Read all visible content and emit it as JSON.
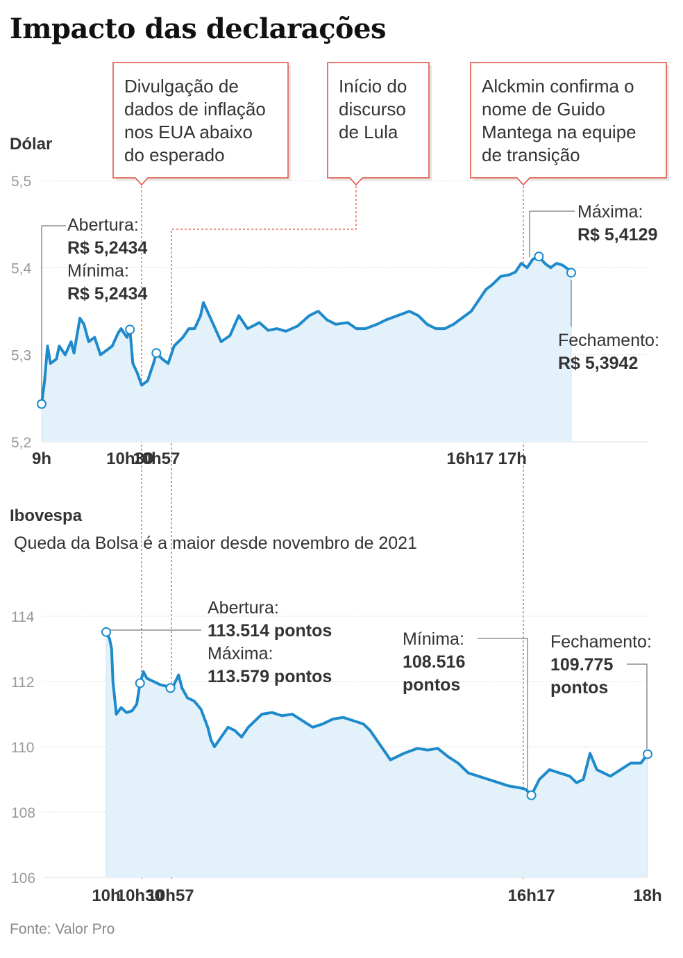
{
  "title": "Impacto das declarações",
  "source": "Fonte: Valor Pro",
  "colors": {
    "line": "#1e8acb",
    "area": "#e3f1fa",
    "event": "#e04a3a",
    "grid": "#dddddd",
    "marker_fill": "#ffffff"
  },
  "events": [
    {
      "lines": [
        "Divulgação de",
        "dados de inflação",
        "nos EUA abaixo",
        "do esperado"
      ],
      "time": "10h30"
    },
    {
      "lines": [
        "Início do",
        "discurso",
        "de Lula"
      ],
      "time": "10h57"
    },
    {
      "lines": [
        "Alckmin confirma o",
        "nome de Guido",
        "Mantega na equipe",
        "de transição"
      ],
      "time": "16h17"
    }
  ],
  "chart_data": [
    {
      "type": "line",
      "title": "Dólar",
      "subtitle": "",
      "ylim": [
        5.2,
        5.5
      ],
      "yticks": [
        "5,2",
        "5,3",
        "5,4",
        "5,5"
      ],
      "xlim_hours": [
        9,
        18
      ],
      "xticks": [
        {
          "label": "9h",
          "x": 9.0
        },
        {
          "label": "10h30",
          "x": 10.5
        },
        {
          "label": "10h57",
          "x": 10.95
        },
        {
          "label": "16h17",
          "x": 16.283
        },
        {
          "label": "17h",
          "x": 17.0
        }
      ],
      "grid": true,
      "series": [
        {
          "points": [
            [
              9.0,
              5.2434
            ],
            [
              9.05,
              5.27
            ],
            [
              9.1,
              5.31
            ],
            [
              9.15,
              5.29
            ],
            [
              9.25,
              5.295
            ],
            [
              9.3,
              5.31
            ],
            [
              9.4,
              5.3
            ],
            [
              9.5,
              5.315
            ],
            [
              9.55,
              5.302
            ],
            [
              9.65,
              5.342
            ],
            [
              9.72,
              5.335
            ],
            [
              9.8,
              5.315
            ],
            [
              9.9,
              5.32
            ],
            [
              10.0,
              5.3
            ],
            [
              10.1,
              5.305
            ],
            [
              10.2,
              5.31
            ],
            [
              10.3,
              5.325
            ],
            [
              10.35,
              5.33
            ],
            [
              10.45,
              5.32
            ],
            [
              10.5,
              5.329
            ],
            [
              10.55,
              5.29
            ],
            [
              10.62,
              5.28
            ],
            [
              10.7,
              5.265
            ],
            [
              10.8,
              5.27
            ],
            [
              10.9,
              5.29
            ],
            [
              10.95,
              5.302
            ],
            [
              11.05,
              5.295
            ],
            [
              11.15,
              5.29
            ],
            [
              11.25,
              5.31
            ],
            [
              11.4,
              5.32
            ],
            [
              11.5,
              5.33
            ],
            [
              11.6,
              5.33
            ],
            [
              11.7,
              5.345
            ],
            [
              11.75,
              5.36
            ],
            [
              11.85,
              5.345
            ],
            [
              11.95,
              5.33
            ],
            [
              12.05,
              5.315
            ],
            [
              12.2,
              5.322
            ],
            [
              12.35,
              5.345
            ],
            [
              12.5,
              5.33
            ],
            [
              12.7,
              5.337
            ],
            [
              12.85,
              5.328
            ],
            [
              13.0,
              5.33
            ],
            [
              13.15,
              5.327
            ],
            [
              13.35,
              5.333
            ],
            [
              13.55,
              5.345
            ],
            [
              13.7,
              5.35
            ],
            [
              13.85,
              5.34
            ],
            [
              14.0,
              5.335
            ],
            [
              14.2,
              5.337
            ],
            [
              14.35,
              5.33
            ],
            [
              14.5,
              5.33
            ],
            [
              14.7,
              5.335
            ],
            [
              14.85,
              5.34
            ],
            [
              15.05,
              5.345
            ],
            [
              15.25,
              5.35
            ],
            [
              15.4,
              5.345
            ],
            [
              15.55,
              5.335
            ],
            [
              15.7,
              5.33
            ],
            [
              15.85,
              5.33
            ],
            [
              16.0,
              5.335
            ],
            [
              16.1,
              5.34
            ],
            [
              16.2,
              5.345
            ],
            [
              16.3,
              5.35
            ],
            [
              16.45,
              5.365
            ],
            [
              16.55,
              5.375
            ],
            [
              16.65,
              5.38
            ],
            [
              16.8,
              5.39
            ],
            [
              16.95,
              5.392
            ],
            [
              17.05,
              5.395
            ],
            [
              17.15,
              5.405
            ],
            [
              17.25,
              5.4
            ],
            [
              17.35,
              5.41
            ],
            [
              17.45,
              5.4129
            ],
            [
              17.55,
              5.405
            ],
            [
              17.65,
              5.4
            ],
            [
              17.75,
              5.405
            ],
            [
              17.85,
              5.403
            ],
            [
              17.95,
              5.398
            ],
            [
              18.0,
              5.3942
            ]
          ]
        }
      ],
      "annotations": [
        {
          "lines": [
            "Abertura:"
          ],
          "value": "R$ 5,2434"
        },
        {
          "lines": [
            "Mínima:"
          ],
          "value": "R$ 5,2434"
        },
        {
          "lines": [
            "Máxima:"
          ],
          "value": "R$ 5,4129"
        },
        {
          "lines": [
            "Fechamento:"
          ],
          "value": "R$ 5,3942"
        }
      ]
    },
    {
      "type": "line",
      "title": "Ibovespa",
      "subtitle": "Queda da Bolsa é a maior desde novembro de 2021",
      "ylim": [
        106,
        114
      ],
      "yticks": [
        "106",
        "108",
        "110",
        "112",
        "114"
      ],
      "xlim_hours": [
        9,
        18
      ],
      "xticks": [
        {
          "label": "10h",
          "x": 10.0
        },
        {
          "label": "10h30",
          "x": 10.5
        },
        {
          "label": "10h57",
          "x": 10.95
        },
        {
          "label": "16h17",
          "x": 16.283
        },
        {
          "label": "18h",
          "x": 18.0
        }
      ],
      "grid": true,
      "series": [
        {
          "points": [
            [
              10.0,
              113.514
            ],
            [
              10.05,
              113.3
            ],
            [
              10.08,
              113.0
            ],
            [
              10.1,
              112.0
            ],
            [
              10.15,
              111.0
            ],
            [
              10.22,
              111.2
            ],
            [
              10.3,
              111.05
            ],
            [
              10.38,
              111.1
            ],
            [
              10.45,
              111.3
            ],
            [
              10.5,
              111.95
            ],
            [
              10.55,
              112.3
            ],
            [
              10.6,
              112.1
            ],
            [
              10.7,
              112.0
            ],
            [
              10.8,
              111.9
            ],
            [
              10.9,
              111.85
            ],
            [
              10.95,
              111.8
            ],
            [
              11.0,
              111.9
            ],
            [
              11.07,
              112.2
            ],
            [
              11.12,
              111.8
            ],
            [
              11.2,
              111.5
            ],
            [
              11.3,
              111.4
            ],
            [
              11.4,
              111.15
            ],
            [
              11.5,
              110.6
            ],
            [
              11.55,
              110.2
            ],
            [
              11.6,
              110.0
            ],
            [
              11.7,
              110.3
            ],
            [
              11.8,
              110.6
            ],
            [
              11.9,
              110.5
            ],
            [
              12.0,
              110.3
            ],
            [
              12.1,
              110.6
            ],
            [
              12.2,
              110.8
            ],
            [
              12.3,
              111.0
            ],
            [
              12.45,
              111.05
            ],
            [
              12.6,
              110.95
            ],
            [
              12.75,
              111.0
            ],
            [
              12.9,
              110.8
            ],
            [
              13.05,
              110.6
            ],
            [
              13.2,
              110.7
            ],
            [
              13.35,
              110.85
            ],
            [
              13.5,
              110.9
            ],
            [
              13.65,
              110.8
            ],
            [
              13.8,
              110.7
            ],
            [
              13.9,
              110.5
            ],
            [
              14.0,
              110.2
            ],
            [
              14.1,
              109.9
            ],
            [
              14.2,
              109.6
            ],
            [
              14.3,
              109.7
            ],
            [
              14.4,
              109.8
            ],
            [
              14.6,
              109.95
            ],
            [
              14.75,
              109.9
            ],
            [
              14.9,
              109.95
            ],
            [
              15.05,
              109.7
            ],
            [
              15.2,
              109.5
            ],
            [
              15.35,
              109.2
            ],
            [
              15.5,
              109.1
            ],
            [
              15.65,
              109.0
            ],
            [
              15.8,
              108.9
            ],
            [
              15.95,
              108.8
            ],
            [
              16.1,
              108.75
            ],
            [
              16.2,
              108.7
            ],
            [
              16.283,
              108.516
            ],
            [
              16.4,
              109.0
            ],
            [
              16.55,
              109.3
            ],
            [
              16.7,
              109.2
            ],
            [
              16.85,
              109.1
            ],
            [
              16.95,
              108.9
            ],
            [
              17.05,
              109.0
            ],
            [
              17.15,
              109.8
            ],
            [
              17.25,
              109.3
            ],
            [
              17.35,
              109.2
            ],
            [
              17.45,
              109.1
            ],
            [
              17.6,
              109.3
            ],
            [
              17.75,
              109.5
            ],
            [
              17.9,
              109.5
            ],
            [
              18.0,
              109.775
            ]
          ]
        }
      ],
      "annotations": [
        {
          "lines": [
            "Abertura:"
          ],
          "value": "113.514 pontos"
        },
        {
          "lines": [
            "Máxima:"
          ],
          "value": "113.579 pontos"
        },
        {
          "lines": [
            "Mínima:"
          ],
          "value_lines": [
            "108.516",
            "pontos"
          ]
        },
        {
          "lines": [
            "Fechamento:"
          ],
          "value_lines": [
            "109.775",
            "pontos"
          ]
        }
      ]
    }
  ]
}
